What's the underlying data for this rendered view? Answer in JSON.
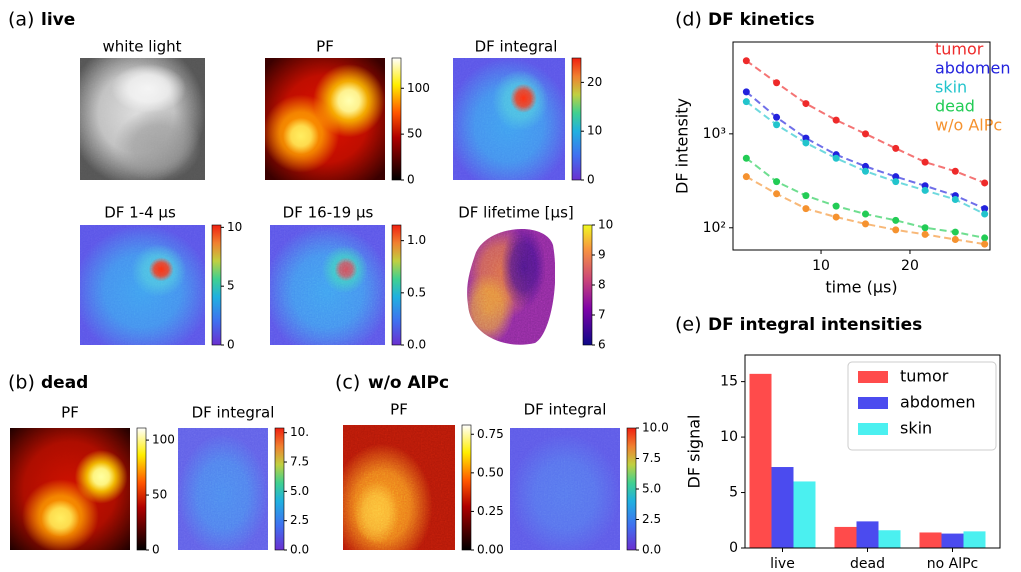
{
  "panels": [
    {
      "label": "(a)",
      "title": "live",
      "images": [
        {
          "title": "white light",
          "cmap": "gray"
        },
        {
          "title": "PF",
          "cmap": "hot",
          "clim": [
            0,
            133
          ],
          "ticks": [
            0,
            50,
            100
          ]
        },
        {
          "title": "DF integral",
          "cmap": "rainbow",
          "clim": [
            0,
            25
          ],
          "ticks": [
            0,
            10,
            20
          ]
        },
        {
          "title": "DF 1-4 μs",
          "cmap": "rainbow",
          "clim": [
            0,
            10.2
          ],
          "ticks": [
            0,
            5,
            10
          ]
        },
        {
          "title": "DF 16-19 μs",
          "cmap": "rainbow",
          "clim": [
            0,
            1.15
          ],
          "ticks": [
            {
              "value": 0,
              "label": "0.0"
            },
            0.5,
            {
              "value": 1,
              "label": "1.0"
            }
          ]
        },
        {
          "title": "DF lifetime [μs]",
          "cmap": "plasma",
          "clim": [
            6,
            10
          ],
          "ticks": [
            6,
            7,
            8,
            9,
            10
          ]
        }
      ]
    },
    {
      "label": "(b)",
      "title": "dead",
      "images": [
        {
          "title": "PF",
          "cmap": "hot",
          "clim": [
            0,
            111
          ],
          "ticks": [
            0,
            50,
            100
          ]
        },
        {
          "title": "DF integral",
          "cmap": "rainbow",
          "clim": [
            0,
            10.4
          ],
          "ticks": [
            {
              "value": 0,
              "label": "0.0"
            },
            2.5,
            {
              "value": 5,
              "label": "5.0"
            },
            7.5,
            {
              "value": 10,
              "label": "10."
            }
          ]
        }
      ]
    },
    {
      "label": "(c)",
      "title": "w/o AlPc",
      "images": [
        {
          "title": "PF",
          "cmap": "hot",
          "clim": [
            0,
            0.81
          ],
          "ticks": [
            {
              "value": 0,
              "label": "0.00"
            },
            0.25,
            {
              "value": 0.5,
              "label": "0.50"
            },
            0.75
          ]
        },
        {
          "title": "DF integral",
          "cmap": "rainbow",
          "clim": [
            0,
            10
          ],
          "ticks": [
            {
              "value": 0,
              "label": "0.0"
            },
            2.5,
            {
              "value": 5,
              "label": "5.0"
            },
            7.5,
            {
              "value": 10,
              "label": "10.0"
            }
          ]
        }
      ]
    }
  ],
  "chart_data": [
    {
      "type": "line",
      "label": "(d)",
      "title": "DF kinetics",
      "x_label": "time (μs)",
      "y_label": "DF intensity",
      "log_y": true,
      "xlim": [
        0.1,
        29
      ],
      "ylim": [
        58,
        9500
      ],
      "xticks": [
        10,
        20
      ],
      "yticks": [
        {
          "value": 100,
          "label": "10²"
        },
        {
          "value": 1000,
          "label": "10³"
        }
      ],
      "x": [
        1.6,
        5.0,
        8.3,
        11.7,
        15.0,
        18.4,
        21.7,
        25.1,
        28.4
      ],
      "series": [
        {
          "name": "tumor",
          "color": "#ee2a2a",
          "values": [
            6000,
            3500,
            2100,
            1400,
            1000,
            700,
            500,
            400,
            300
          ]
        },
        {
          "name": "abdomen",
          "color": "#2222dd",
          "values": [
            2800,
            1500,
            900,
            600,
            450,
            350,
            280,
            220,
            160
          ]
        },
        {
          "name": "skin",
          "color": "#22c4cc",
          "values": [
            2200,
            1250,
            800,
            550,
            400,
            310,
            250,
            200,
            140
          ]
        },
        {
          "name": "dead",
          "color": "#22cc55",
          "values": [
            550,
            310,
            220,
            170,
            140,
            120,
            100,
            90,
            78
          ]
        },
        {
          "name": "w/o AlPc",
          "color": "#f5922f",
          "values": [
            350,
            230,
            160,
            130,
            110,
            95,
            85,
            75,
            67
          ]
        }
      ]
    },
    {
      "type": "bar",
      "label": "(e)",
      "title": "DF integral intensities",
      "y_label": "DF signal",
      "categories": [
        "live",
        "dead",
        "no AlPc"
      ],
      "ylim": [
        0,
        17.4
      ],
      "yticks": [
        0,
        5,
        10,
        15
      ],
      "legend": "upper right",
      "series": [
        {
          "name": "tumor",
          "color": "#ff4b4b",
          "values": [
            15.7,
            1.9,
            1.4
          ]
        },
        {
          "name": "abdomen",
          "color": "#4b4bef",
          "values": [
            7.3,
            2.4,
            1.3
          ]
        },
        {
          "name": "skin",
          "color": "#4bf0f0",
          "values": [
            6.0,
            1.6,
            1.5
          ]
        }
      ]
    }
  ]
}
